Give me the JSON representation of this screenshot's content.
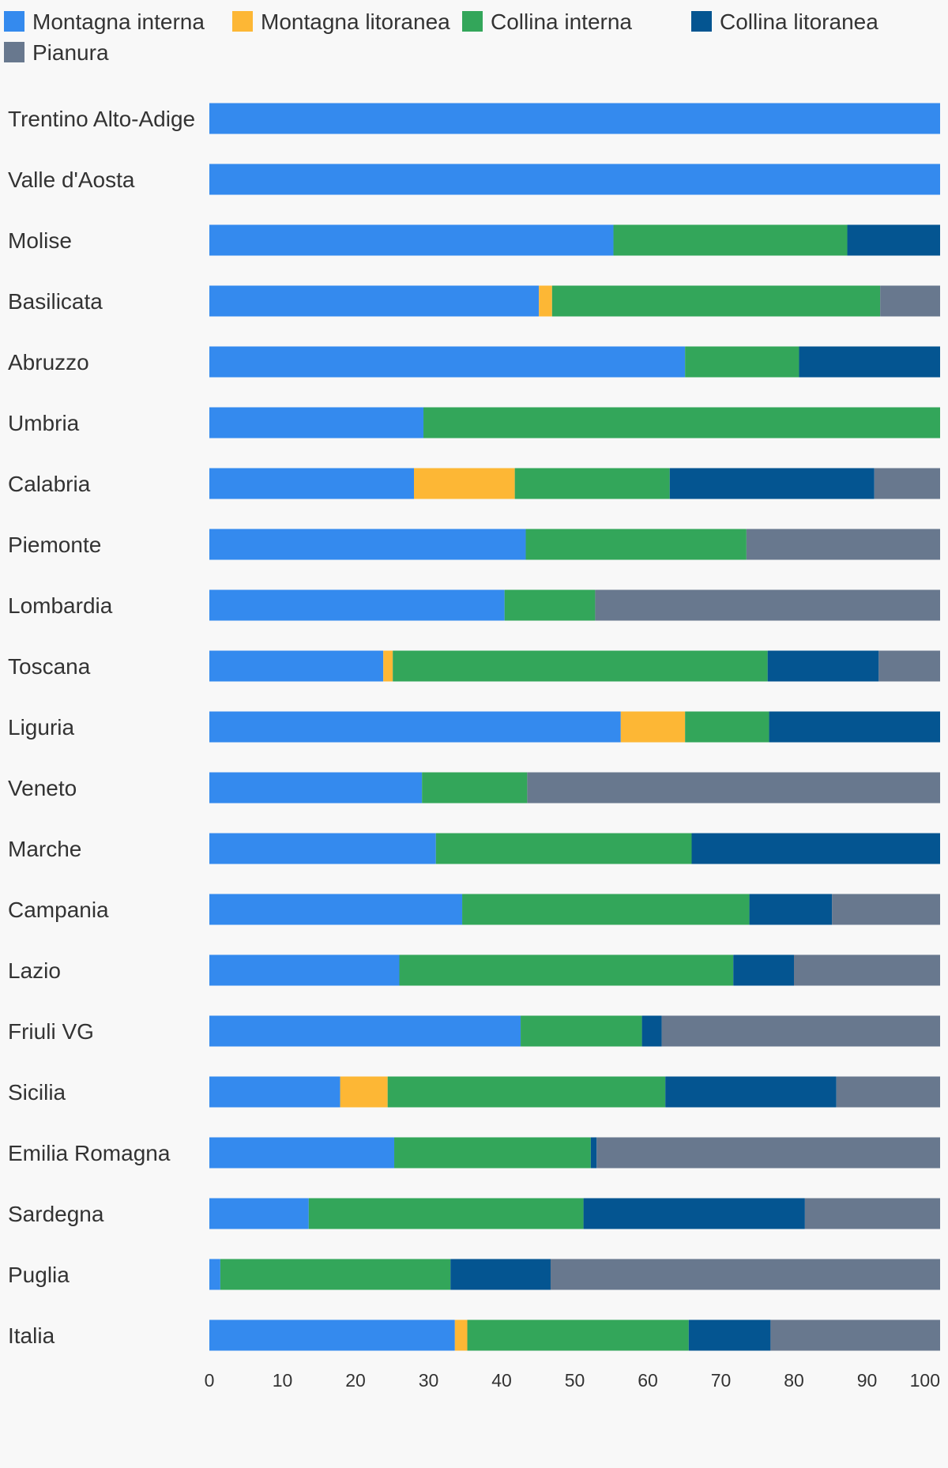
{
  "chart_data": {
    "type": "bar",
    "orientation": "horizontal",
    "stacked": true,
    "title": "",
    "xlabel": "",
    "ylabel": "",
    "xlim": [
      0,
      100
    ],
    "x_ticks": [
      "0",
      "10",
      "20",
      "30",
      "40",
      "50",
      "60",
      "70",
      "80",
      "90",
      "100"
    ],
    "grid": false,
    "legend_position": "top",
    "categories": [
      "Trentino Alto-Adige",
      "Valle d'Aosta",
      "Molise",
      "Basilicata",
      "Abruzzo",
      "Umbria",
      "Calabria",
      "Piemonte",
      "Lombardia",
      "Toscana",
      "Liguria",
      "Veneto",
      "Marche",
      "Campania",
      "Lazio",
      "Friuli VG",
      "Sicilia",
      "Emilia Romagna",
      "Sardegna",
      "Puglia",
      "Italia"
    ],
    "series": [
      {
        "name": "Montagna interna",
        "color": "#348AEE",
        "values": [
          100,
          100,
          55.3,
          45.1,
          65.1,
          29.3,
          28.0,
          43.3,
          40.4,
          23.8,
          56.3,
          29.1,
          31.0,
          34.6,
          26.0,
          42.6,
          17.9,
          25.3,
          13.6,
          1.5,
          33.6
        ]
      },
      {
        "name": "Montagna litoranea",
        "color": "#FDB735",
        "values": [
          0,
          0,
          0,
          1.8,
          0,
          0,
          13.8,
          0,
          0,
          1.3,
          8.8,
          0,
          0,
          0,
          0,
          0,
          6.5,
          0,
          0,
          0,
          1.7
        ]
      },
      {
        "name": "Collina interna",
        "color": "#33A65A",
        "values": [
          0,
          0,
          32.0,
          44.9,
          15.6,
          70.7,
          21.2,
          30.2,
          12.4,
          51.3,
          11.5,
          14.4,
          35.0,
          39.3,
          45.7,
          16.6,
          38.0,
          26.9,
          37.6,
          31.5,
          30.3
        ]
      },
      {
        "name": "Collina litoranea",
        "color": "#045591",
        "values": [
          0,
          0,
          12.7,
          0,
          19.3,
          0,
          28.0,
          0,
          0,
          15.2,
          23.4,
          0,
          34.0,
          11.3,
          8.3,
          2.7,
          23.4,
          0.8,
          30.3,
          13.7,
          11.2
        ]
      },
      {
        "name": "Pianura",
        "color": "#68788E",
        "values": [
          0,
          0,
          0,
          8.2,
          0,
          0,
          9.0,
          26.5,
          47.2,
          8.4,
          0,
          56.5,
          0,
          14.8,
          20.0,
          38.1,
          14.2,
          47.0,
          18.5,
          53.3,
          23.2
        ]
      }
    ]
  }
}
